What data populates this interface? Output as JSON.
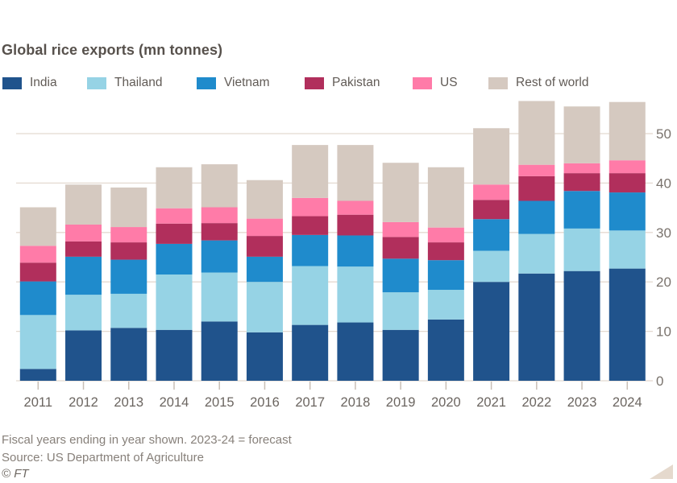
{
  "title": "Global rice exports (mn tonnes)",
  "legend": [
    {
      "label": "India",
      "color": "#20538c"
    },
    {
      "label": "Thailand",
      "color": "#96d3e5"
    },
    {
      "label": "Vietnam",
      "color": "#1f8bcc"
    },
    {
      "label": "Pakistan",
      "color": "#b12f5c"
    },
    {
      "label": "US",
      "color": "#ff7ba8"
    },
    {
      "label": "Rest of world",
      "color": "#d5c9c0"
    }
  ],
  "footer": {
    "note": "Fiscal years ending in year shown. 2023-24 = forecast",
    "source": "Source: US Department of Agriculture",
    "copyright": "© FT"
  },
  "colors": {
    "background": "#ffffff",
    "gridline": "#e4d9d0",
    "tick": "#c9bfb6",
    "axis_text": "#7a736d",
    "x_axis_text": "#6b6560",
    "title_text": "#57514c",
    "footer_text": "#87807a",
    "corner_triangle": "#e5d9cd"
  },
  "chart_data": {
    "type": "bar",
    "stacked": true,
    "title": "Global rice exports (mn tonnes)",
    "xlabel": "",
    "ylabel": "mn tonnes",
    "ylim": [
      0,
      57
    ],
    "yticks": [
      0,
      10,
      20,
      30,
      40,
      50
    ],
    "grid": true,
    "legend_position": "top",
    "categories": [
      "2011",
      "2012",
      "2013",
      "2014",
      "2015",
      "2016",
      "2017",
      "2018",
      "2019",
      "2020",
      "2021",
      "2022",
      "2023",
      "2024"
    ],
    "series": [
      {
        "name": "India",
        "color": "#20538c",
        "values": [
          2.4,
          10.2,
          10.7,
          10.3,
          12.0,
          9.8,
          11.3,
          11.8,
          10.3,
          12.4,
          20.0,
          21.7,
          22.2,
          22.7
        ]
      },
      {
        "name": "Thailand",
        "color": "#96d3e5",
        "values": [
          10.9,
          7.2,
          6.9,
          11.2,
          9.9,
          10.2,
          11.9,
          11.3,
          7.6,
          6.0,
          6.3,
          8.0,
          8.6,
          7.7
        ]
      },
      {
        "name": "Vietnam",
        "color": "#1f8bcc",
        "values": [
          6.8,
          7.7,
          6.9,
          6.2,
          6.5,
          5.1,
          6.3,
          6.3,
          6.8,
          6.0,
          6.4,
          6.7,
          7.6,
          7.7
        ]
      },
      {
        "name": "Pakistan",
        "color": "#b12f5c",
        "values": [
          3.8,
          3.1,
          3.5,
          4.1,
          3.5,
          4.2,
          3.8,
          4.2,
          4.4,
          3.6,
          3.9,
          5.0,
          3.6,
          3.9
        ]
      },
      {
        "name": "US",
        "color": "#ff7ba8",
        "values": [
          3.4,
          3.4,
          3.1,
          3.1,
          3.2,
          3.5,
          3.7,
          2.8,
          3.0,
          3.0,
          3.1,
          2.3,
          2.0,
          2.6
        ]
      },
      {
        "name": "Rest of world",
        "color": "#d5c9c0",
        "values": [
          7.8,
          8.1,
          8.0,
          8.3,
          8.7,
          7.8,
          10.7,
          11.3,
          12.0,
          12.2,
          11.4,
          12.9,
          11.5,
          11.8
        ]
      }
    ],
    "totals": [
      35.1,
      39.7,
      39.1,
      43.2,
      43.8,
      40.6,
      47.7,
      47.7,
      44.1,
      43.2,
      51.1,
      56.6,
      55.5,
      56.4
    ],
    "footnote": "Fiscal years ending in year shown. 2023-24 = forecast",
    "source": "Source: US Department of Agriculture"
  }
}
